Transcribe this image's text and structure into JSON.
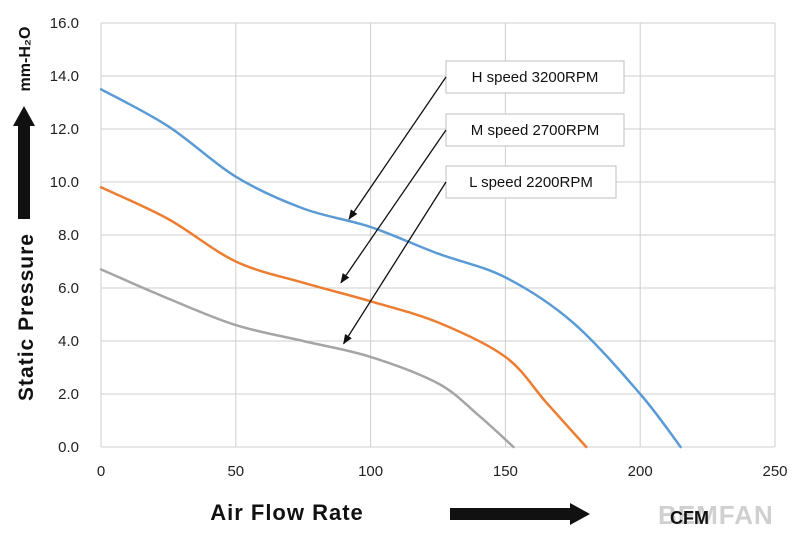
{
  "chart_data": {
    "type": "line",
    "xlabel": "Air Flow Rate",
    "xunit": "CFM",
    "ylabel": "Static Pressure",
    "yunit": "mm-H₂O",
    "xlim": [
      0,
      250
    ],
    "ylim": [
      0,
      16
    ],
    "xticks": [
      "0",
      "50",
      "100",
      "150",
      "200",
      "250"
    ],
    "yticks": [
      "0.0",
      "2.0",
      "4.0",
      "6.0",
      "8.0",
      "10.0",
      "12.0",
      "14.0",
      "16.0"
    ],
    "grid": true,
    "series": [
      {
        "name": "H speed  3200RPM",
        "color": "#5b9bd5",
        "x": [
          0,
          25,
          50,
          75,
          100,
          125,
          150,
          175,
          200,
          215
        ],
        "y": [
          13.5,
          12.1,
          10.2,
          9.0,
          8.3,
          7.3,
          6.4,
          4.7,
          2.0,
          0.0
        ]
      },
      {
        "name": "M speed  2700RPM",
        "color": "#ed7d31",
        "x": [
          0,
          25,
          50,
          75,
          100,
          125,
          150,
          165,
          180
        ],
        "y": [
          9.8,
          8.6,
          7.0,
          6.2,
          5.5,
          4.7,
          3.4,
          1.7,
          0.0
        ]
      },
      {
        "name": "L speed  2200RPM",
        "color": "#a5a5a5",
        "x": [
          0,
          25,
          50,
          75,
          100,
          125,
          140,
          153
        ],
        "y": [
          6.7,
          5.6,
          4.6,
          4.0,
          3.4,
          2.4,
          1.2,
          0.0
        ]
      }
    ],
    "annotations": [
      {
        "series": 0,
        "text": "H speed  3200RPM",
        "point": [
          92,
          8.6
        ]
      },
      {
        "series": 1,
        "text": "M speed  2700RPM",
        "point": [
          89,
          6.2
        ]
      },
      {
        "series": 2,
        "text": "L speed  2200RPM",
        "point": [
          90,
          3.9
        ]
      }
    ]
  },
  "watermark": "BEMFAN",
  "colors": {
    "grid": "#cfcfcf",
    "text": "#111111",
    "arrow": "#111111"
  }
}
